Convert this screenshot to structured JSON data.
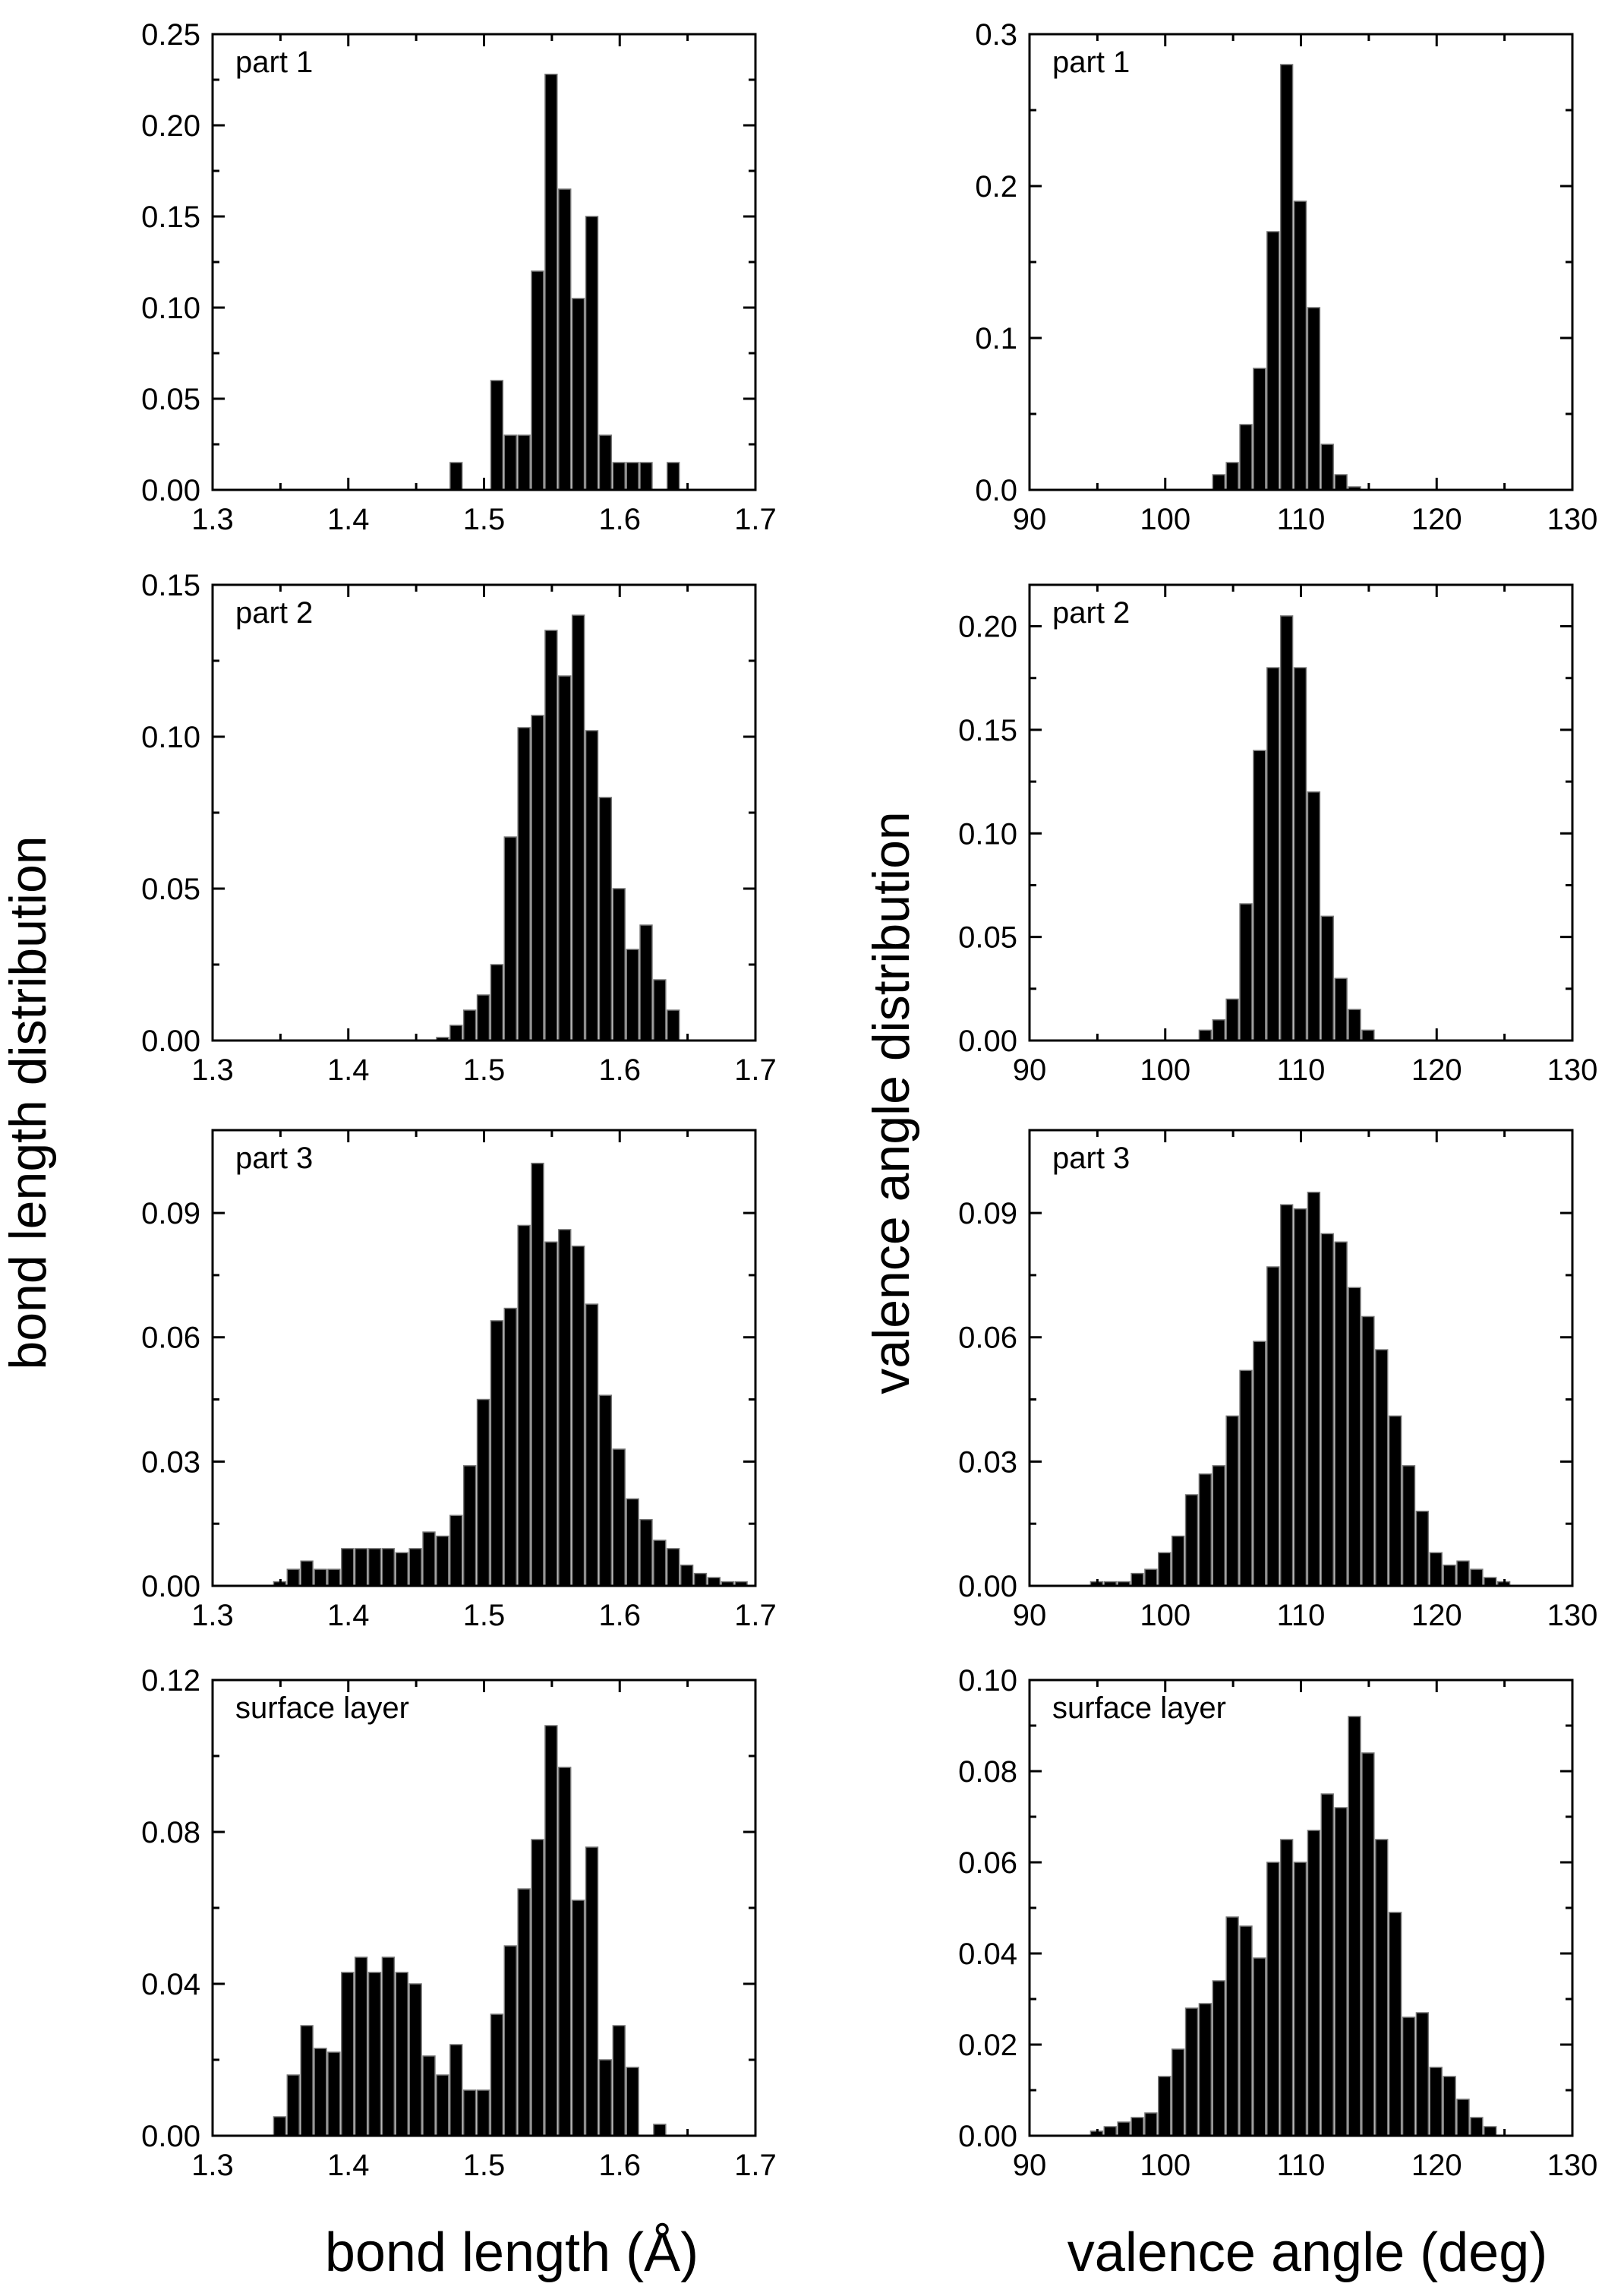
{
  "figure": {
    "left_ylabel": "bond length distribution",
    "right_ylabel": "valence angle distribution",
    "left_xlabel": "bond length (Å)",
    "right_xlabel": "valence angle (deg)"
  },
  "chart_data": [
    {
      "id": "bond-part1",
      "type": "bar",
      "panel_label": "part 1",
      "xlim": [
        1.3,
        1.7
      ],
      "ylim": [
        0,
        0.25
      ],
      "bin_width": 0.01,
      "xticks": [
        "1.3",
        "1.4",
        "1.5",
        "1.6",
        "1.7"
      ],
      "yticks": [
        "0.00",
        "0.05",
        "0.10",
        "0.15",
        "0.20",
        "0.25"
      ],
      "x": [
        1.48,
        1.51,
        1.52,
        1.53,
        1.54,
        1.55,
        1.56,
        1.57,
        1.58,
        1.59,
        1.6,
        1.61,
        1.62,
        1.64
      ],
      "values": [
        0.015,
        0.06,
        0.03,
        0.03,
        0.12,
        0.228,
        0.165,
        0.105,
        0.15,
        0.03,
        0.015,
        0.015,
        0.015,
        0.015
      ]
    },
    {
      "id": "angle-part1",
      "type": "bar",
      "panel_label": "part 1",
      "xlim": [
        90,
        130
      ],
      "ylim": [
        0,
        0.3
      ],
      "bin_width": 1,
      "xticks": [
        "90",
        "100",
        "110",
        "120",
        "130"
      ],
      "yticks": [
        "0.0",
        "0.1",
        "0.2",
        "0.3"
      ],
      "x": [
        104,
        105,
        106,
        107,
        108,
        109,
        110,
        111,
        112,
        113,
        114
      ],
      "values": [
        0.01,
        0.018,
        0.043,
        0.08,
        0.17,
        0.28,
        0.19,
        0.12,
        0.03,
        0.01,
        0.002
      ]
    },
    {
      "id": "bond-part2",
      "type": "bar",
      "panel_label": "part 2",
      "xlim": [
        1.3,
        1.7
      ],
      "ylim": [
        0,
        0.15
      ],
      "bin_width": 0.01,
      "xticks": [
        "1.3",
        "1.4",
        "1.5",
        "1.6",
        "1.7"
      ],
      "yticks": [
        "0.00",
        "0.05",
        "0.10",
        "0.15"
      ],
      "x": [
        1.47,
        1.48,
        1.49,
        1.5,
        1.51,
        1.52,
        1.53,
        1.54,
        1.55,
        1.56,
        1.57,
        1.58,
        1.59,
        1.6,
        1.61,
        1.62,
        1.63,
        1.64
      ],
      "values": [
        0.001,
        0.005,
        0.01,
        0.015,
        0.025,
        0.067,
        0.103,
        0.107,
        0.135,
        0.12,
        0.14,
        0.102,
        0.08,
        0.05,
        0.03,
        0.038,
        0.02,
        0.01
      ]
    },
    {
      "id": "angle-part2",
      "type": "bar",
      "panel_label": "part 2",
      "xlim": [
        90,
        130
      ],
      "ylim": [
        0,
        0.22
      ],
      "bin_width": 1,
      "xticks": [
        "90",
        "100",
        "110",
        "120",
        "130"
      ],
      "yticks": [
        "0.00",
        "0.05",
        "0.10",
        "0.15",
        "0.20"
      ],
      "x": [
        103,
        104,
        105,
        106,
        107,
        108,
        109,
        110,
        111,
        112,
        113,
        114,
        115
      ],
      "values": [
        0.005,
        0.01,
        0.02,
        0.066,
        0.14,
        0.18,
        0.205,
        0.18,
        0.12,
        0.06,
        0.03,
        0.015,
        0.005
      ]
    },
    {
      "id": "bond-part3",
      "type": "bar",
      "panel_label": "part 3",
      "xlim": [
        1.3,
        1.7
      ],
      "ylim": [
        0,
        0.11
      ],
      "bin_width": 0.01,
      "xticks": [
        "1.3",
        "1.4",
        "1.5",
        "1.6",
        "1.7"
      ],
      "yticks": [
        "0.00",
        "0.03",
        "0.06",
        "0.09"
      ],
      "x": [
        1.35,
        1.36,
        1.37,
        1.38,
        1.39,
        1.4,
        1.41,
        1.42,
        1.43,
        1.44,
        1.45,
        1.46,
        1.47,
        1.48,
        1.49,
        1.5,
        1.51,
        1.52,
        1.53,
        1.54,
        1.55,
        1.56,
        1.57,
        1.58,
        1.59,
        1.6,
        1.61,
        1.62,
        1.63,
        1.64,
        1.65,
        1.66,
        1.67,
        1.68,
        1.69
      ],
      "values": [
        0.001,
        0.004,
        0.006,
        0.004,
        0.004,
        0.009,
        0.009,
        0.009,
        0.009,
        0.008,
        0.009,
        0.013,
        0.012,
        0.017,
        0.029,
        0.045,
        0.064,
        0.067,
        0.087,
        0.102,
        0.083,
        0.086,
        0.082,
        0.068,
        0.046,
        0.033,
        0.021,
        0.016,
        0.011,
        0.009,
        0.005,
        0.003,
        0.002,
        0.001,
        0.001
      ]
    },
    {
      "id": "angle-part3",
      "type": "bar",
      "panel_label": "part 3",
      "xlim": [
        90,
        130
      ],
      "ylim": [
        0,
        0.11
      ],
      "bin_width": 1,
      "xticks": [
        "90",
        "100",
        "110",
        "120",
        "130"
      ],
      "yticks": [
        "0.00",
        "0.03",
        "0.06",
        "0.09"
      ],
      "x": [
        95,
        96,
        97,
        98,
        99,
        100,
        101,
        102,
        103,
        104,
        105,
        106,
        107,
        108,
        109,
        110,
        111,
        112,
        113,
        114,
        115,
        116,
        117,
        118,
        119,
        120,
        121,
        122,
        123,
        124,
        125
      ],
      "values": [
        0.001,
        0.001,
        0.001,
        0.003,
        0.004,
        0.008,
        0.012,
        0.022,
        0.027,
        0.029,
        0.041,
        0.052,
        0.059,
        0.077,
        0.092,
        0.091,
        0.095,
        0.085,
        0.083,
        0.072,
        0.065,
        0.057,
        0.041,
        0.029,
        0.018,
        0.008,
        0.005,
        0.006,
        0.004,
        0.002,
        0.001
      ]
    },
    {
      "id": "bond-surface",
      "type": "bar",
      "panel_label": "surface layer",
      "xlim": [
        1.3,
        1.7
      ],
      "ylim": [
        0,
        0.12
      ],
      "bin_width": 0.01,
      "xticks": [
        "1.3",
        "1.4",
        "1.5",
        "1.6",
        "1.7"
      ],
      "yticks": [
        "0.00",
        "0.04",
        "0.08",
        "0.12"
      ],
      "x": [
        1.35,
        1.36,
        1.37,
        1.38,
        1.39,
        1.4,
        1.41,
        1.42,
        1.43,
        1.44,
        1.45,
        1.46,
        1.47,
        1.48,
        1.49,
        1.5,
        1.51,
        1.52,
        1.53,
        1.54,
        1.55,
        1.56,
        1.57,
        1.58,
        1.59,
        1.6,
        1.61,
        1.63
      ],
      "values": [
        0.005,
        0.016,
        0.029,
        0.023,
        0.022,
        0.043,
        0.047,
        0.043,
        0.047,
        0.043,
        0.04,
        0.021,
        0.016,
        0.024,
        0.012,
        0.012,
        0.032,
        0.05,
        0.065,
        0.078,
        0.108,
        0.097,
        0.062,
        0.076,
        0.02,
        0.029,
        0.018,
        0.003
      ]
    },
    {
      "id": "angle-surface",
      "type": "bar",
      "panel_label": "surface layer",
      "xlim": [
        90,
        130
      ],
      "ylim": [
        0,
        0.1
      ],
      "bin_width": 1,
      "xticks": [
        "90",
        "100",
        "110",
        "120",
        "130"
      ],
      "yticks": [
        "0.00",
        "0.02",
        "0.04",
        "0.06",
        "0.08",
        "0.10"
      ],
      "x": [
        95,
        96,
        97,
        98,
        99,
        100,
        101,
        102,
        103,
        104,
        105,
        106,
        107,
        108,
        109,
        110,
        111,
        112,
        113,
        114,
        115,
        116,
        117,
        118,
        119,
        120,
        121,
        122,
        123,
        124
      ],
      "values": [
        0.001,
        0.002,
        0.003,
        0.004,
        0.005,
        0.013,
        0.019,
        0.028,
        0.029,
        0.034,
        0.048,
        0.046,
        0.039,
        0.06,
        0.065,
        0.06,
        0.067,
        0.075,
        0.072,
        0.092,
        0.084,
        0.065,
        0.049,
        0.026,
        0.027,
        0.015,
        0.013,
        0.008,
        0.004,
        0.002
      ]
    }
  ]
}
